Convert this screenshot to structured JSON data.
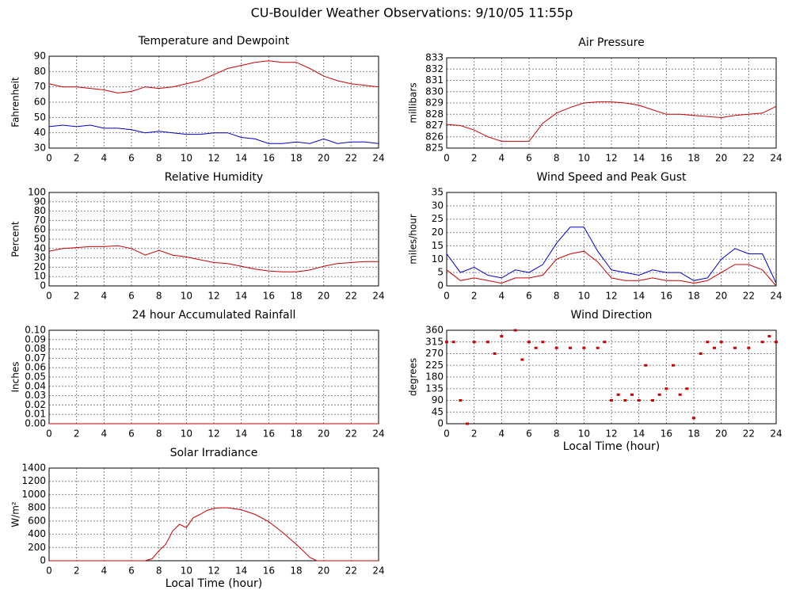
{
  "title": "CU-Boulder Weather Observations: 9/10/05 11:55p",
  "chart_data": [
    {
      "type": "line",
      "title": "Temperature and Dewpoint",
      "ylabel": "Fahrenheit",
      "x": [
        0,
        1,
        2,
        3,
        4,
        5,
        6,
        7,
        8,
        9,
        10,
        11,
        12,
        13,
        14,
        15,
        16,
        17,
        18,
        19,
        20,
        21,
        22,
        23,
        24
      ],
      "series": [
        {
          "color": "#cc0000",
          "values": [
            72,
            70,
            70,
            69,
            68,
            66,
            67,
            70,
            69,
            70,
            72,
            74,
            78,
            82,
            84,
            86,
            87,
            86,
            86,
            82,
            77,
            74,
            72,
            71,
            70
          ]
        },
        {
          "color": "#0000cc",
          "values": [
            44,
            45,
            44,
            45,
            43,
            43,
            42,
            40,
            41,
            40,
            39,
            39,
            40,
            40,
            37,
            36,
            33,
            33,
            34,
            33,
            36,
            33,
            34,
            34,
            33
          ]
        }
      ],
      "xlim": [
        0,
        24
      ],
      "xticks": [
        0,
        2,
        4,
        6,
        8,
        10,
        12,
        14,
        16,
        18,
        20,
        22,
        24
      ],
      "ylim": [
        30,
        90
      ],
      "yticks": [
        30,
        40,
        50,
        60,
        70,
        80,
        90
      ],
      "grid": true
    },
    {
      "type": "line",
      "title": "Air Pressure",
      "ylabel": "millibars",
      "x": [
        0,
        1,
        2,
        3,
        4,
        5,
        6,
        7,
        8,
        9,
        10,
        11,
        12,
        13,
        14,
        15,
        16,
        17,
        18,
        19,
        20,
        21,
        22,
        23,
        24
      ],
      "series": [
        {
          "color": "#cc0000",
          "values": [
            827.1,
            827,
            826.6,
            826,
            825.6,
            825.6,
            825.6,
            827.2,
            828.1,
            828.6,
            829,
            829.1,
            829.1,
            829,
            828.8,
            828.4,
            828,
            828,
            827.9,
            827.8,
            827.7,
            827.9,
            828,
            828.1,
            828.7
          ]
        }
      ],
      "xlim": [
        0,
        24
      ],
      "xticks": [
        0,
        2,
        4,
        6,
        8,
        10,
        12,
        14,
        16,
        18,
        20,
        22,
        24
      ],
      "ylim": [
        825,
        833
      ],
      "yticks": [
        825,
        826,
        827,
        828,
        829,
        830,
        831,
        832,
        833
      ],
      "grid": true
    },
    {
      "type": "line",
      "title": "Relative Humidity",
      "ylabel": "Percent",
      "x": [
        0,
        1,
        2,
        3,
        4,
        5,
        6,
        7,
        8,
        9,
        10,
        11,
        12,
        13,
        14,
        15,
        16,
        17,
        18,
        19,
        20,
        21,
        22,
        23,
        24
      ],
      "series": [
        {
          "color": "#cc0000",
          "values": [
            37,
            40,
            41,
            42,
            42,
            43,
            40,
            33,
            38,
            33,
            31,
            28,
            25,
            24,
            21,
            18,
            16,
            15,
            15,
            17,
            21,
            24,
            25,
            26,
            26
          ]
        }
      ],
      "xlim": [
        0,
        24
      ],
      "xticks": [
        0,
        2,
        4,
        6,
        8,
        10,
        12,
        14,
        16,
        18,
        20,
        22,
        24
      ],
      "ylim": [
        0,
        100
      ],
      "yticks": [
        0,
        10,
        20,
        30,
        40,
        50,
        60,
        70,
        80,
        90,
        100
      ],
      "grid": true
    },
    {
      "type": "line",
      "title": "Wind Speed and Peak Gust",
      "ylabel": "miles/hour",
      "x": [
        0,
        1,
        2,
        3,
        4,
        5,
        6,
        7,
        8,
        9,
        10,
        11,
        12,
        13,
        14,
        15,
        16,
        17,
        18,
        19,
        20,
        21,
        22,
        23,
        24
      ],
      "series": [
        {
          "color": "#0000cc",
          "values": [
            12,
            5,
            7,
            4,
            3,
            6,
            5,
            8,
            16,
            22,
            22,
            13,
            6,
            5,
            4,
            6,
            5,
            5,
            2,
            3,
            10,
            14,
            12,
            12,
            1
          ]
        },
        {
          "color": "#cc0000",
          "values": [
            6,
            2,
            3,
            2,
            1,
            3,
            3,
            4,
            10,
            12,
            13,
            9,
            3,
            2,
            2,
            3,
            2,
            2,
            1,
            2,
            5,
            8,
            8,
            6,
            0
          ]
        }
      ],
      "xlim": [
        0,
        24
      ],
      "xticks": [
        0,
        2,
        4,
        6,
        8,
        10,
        12,
        14,
        16,
        18,
        20,
        22,
        24
      ],
      "ylim": [
        0,
        35
      ],
      "yticks": [
        0,
        5,
        10,
        15,
        20,
        25,
        30,
        35
      ],
      "grid": true
    },
    {
      "type": "line",
      "title": "24 hour Accumulated Rainfall",
      "ylabel": "Inches",
      "x": [
        0,
        24
      ],
      "series": [
        {
          "color": "#cc0000",
          "values": [
            0,
            0
          ]
        }
      ],
      "xlim": [
        0,
        24
      ],
      "xticks": [
        0,
        2,
        4,
        6,
        8,
        10,
        12,
        14,
        16,
        18,
        20,
        22,
        24
      ],
      "ylim": [
        0,
        0.1
      ],
      "yticks": [
        {
          "value": 0,
          "label": "0.00"
        },
        0.01,
        0.02,
        0.03,
        0.04,
        0.05,
        0.06,
        0.07,
        0.08,
        0.09,
        {
          "value": 0.1,
          "label": "0.10"
        }
      ],
      "grid": true
    },
    {
      "type": "scatter",
      "title": "Wind Direction",
      "ylabel": "degrees",
      "xlabel": "Local Time (hour)",
      "x": [
        0,
        0.5,
        1,
        1.5,
        2,
        3,
        3.5,
        4,
        5,
        5.5,
        6,
        6.5,
        7,
        8,
        9,
        10,
        11,
        11.5,
        12,
        12.5,
        13,
        13.5,
        14,
        14.5,
        15,
        15.5,
        16,
        16.5,
        17,
        17.5,
        18,
        18.5,
        19,
        19.5,
        20,
        21,
        22,
        23,
        23.5,
        24
      ],
      "series": [
        {
          "color": "#cc0000",
          "values": [
            315,
            315,
            90,
            0,
            315,
            315,
            270,
            337,
            360,
            247,
            315,
            292,
            315,
            292,
            292,
            292,
            292,
            315,
            90,
            112,
            90,
            112,
            90,
            225,
            90,
            112,
            135,
            225,
            112,
            135,
            22,
            270,
            315,
            292,
            315,
            292,
            292,
            315,
            337,
            315
          ]
        }
      ],
      "xlim": [
        0,
        24
      ],
      "xticks": [
        0,
        2,
        4,
        6,
        8,
        10,
        12,
        14,
        16,
        18,
        20,
        22,
        24
      ],
      "ylim": [
        0,
        360
      ],
      "yticks": [
        0,
        45,
        90,
        135,
        180,
        225,
        270,
        315,
        360
      ],
      "grid": true
    },
    {
      "type": "line",
      "title": "Solar Irradiance",
      "ylabel": "W/m²",
      "xlabel": "Local Time (hour)",
      "x": [
        0,
        7,
        7.5,
        8,
        8.5,
        9,
        9.5,
        10,
        10.5,
        11,
        11.5,
        12,
        12.5,
        13,
        14,
        15,
        16,
        17,
        18,
        19,
        19.5,
        24
      ],
      "series": [
        {
          "color": "#cc0000",
          "values": [
            0,
            0,
            30,
            150,
            250,
            450,
            550,
            500,
            650,
            700,
            760,
            790,
            800,
            800,
            770,
            700,
            590,
            430,
            250,
            50,
            0,
            0
          ]
        }
      ],
      "xlim": [
        0,
        24
      ],
      "xticks": [
        0,
        2,
        4,
        6,
        8,
        10,
        12,
        14,
        16,
        18,
        20,
        22,
        24
      ],
      "ylim": [
        0,
        1400
      ],
      "yticks": [
        0,
        200,
        400,
        600,
        800,
        1000,
        1200,
        1400
      ],
      "grid": true
    }
  ]
}
